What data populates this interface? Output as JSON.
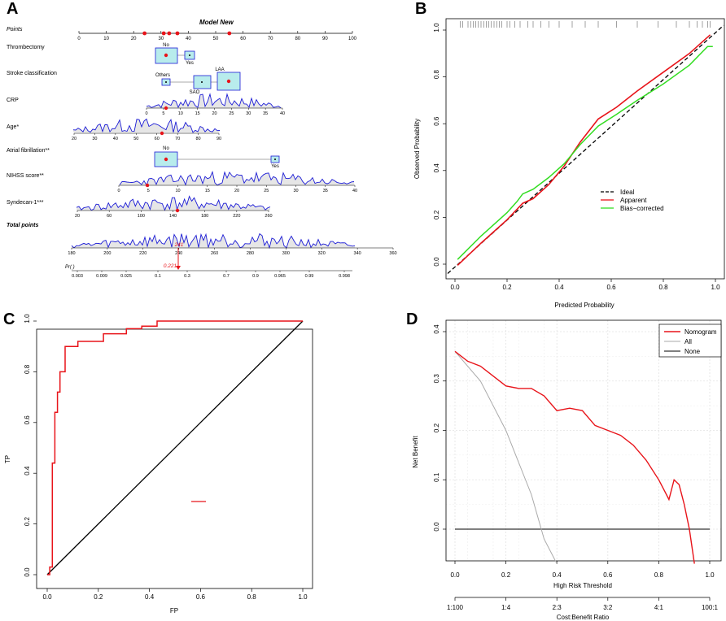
{
  "colors": {
    "red": "#e8141a",
    "green": "#33dd22",
    "blue": "#1c1cd6",
    "box": "#b8ecec",
    "grey": "#999999",
    "black": "#000000"
  },
  "panels": {
    "a": "A",
    "b": "B",
    "c": "C",
    "d": "D"
  },
  "chart_data": [
    {
      "type": "nomogram",
      "panel": "A",
      "title": "Model New",
      "points_label": "Points",
      "points_ticks": [
        0,
        10,
        20,
        30,
        40,
        50,
        60,
        70,
        80,
        90,
        100
      ],
      "rows": [
        {
          "label": "Thrombectomy",
          "levels": [
            "No",
            "Yes"
          ]
        },
        {
          "label": "Stroke classification",
          "levels": [
            "Others",
            "SAO",
            "LAA"
          ]
        },
        {
          "label": "CRP",
          "ticks": [
            0,
            5,
            10,
            15,
            20,
            25,
            30,
            35,
            40
          ]
        },
        {
          "label": "Age*",
          "ticks": [
            20,
            30,
            40,
            50,
            60,
            70,
            80,
            90
          ]
        },
        {
          "label": "Atrial fibrillation**",
          "levels": [
            "No",
            "Yes"
          ]
        },
        {
          "label": "NIHSS score**",
          "ticks": [
            0,
            5,
            10,
            15,
            20,
            25,
            30,
            35,
            40
          ]
        },
        {
          "label": "Syndecan-1***",
          "ticks": [
            20,
            60,
            100,
            140,
            180,
            220,
            260
          ]
        }
      ],
      "total_label": "Total points",
      "total_ticks": [
        180,
        200,
        220,
        240,
        260,
        280,
        300,
        320,
        340,
        360
      ],
      "total_value": "241",
      "prob_label": "Pr( )",
      "prob_ticks": [
        "0.003",
        "0.009",
        "0.025",
        "0.1",
        "0.3",
        "0.7",
        "0.9",
        "0.965",
        "0.99",
        "0.998"
      ],
      "prob_value": "0.221"
    },
    {
      "type": "line",
      "panel": "B",
      "xlabel": "Predicted Probability",
      "ylabel": "Observed  Probability",
      "xlim": [
        0,
        1
      ],
      "ylim": [
        0,
        1
      ],
      "x_ticks": [
        "0.0",
        "0.2",
        "0.4",
        "0.6",
        "0.8",
        "1.0"
      ],
      "y_ticks": [
        "0.0",
        "0.2",
        "0.4",
        "0.6",
        "0.8",
        "1.0"
      ],
      "legend": [
        "Ideal",
        "Apparent",
        "Bias−corrected"
      ],
      "series": [
        {
          "name": "Ideal",
          "x": [
            0,
            1
          ],
          "y": [
            0,
            1
          ]
        },
        {
          "name": "Apparent",
          "x": [
            0.01,
            0.1,
            0.2,
            0.26,
            0.3,
            0.36,
            0.42,
            0.48,
            0.55,
            0.62,
            0.7,
            0.8,
            0.9,
            0.98
          ],
          "y": [
            -0.005,
            0.09,
            0.19,
            0.26,
            0.28,
            0.34,
            0.42,
            0.52,
            0.62,
            0.67,
            0.74,
            0.82,
            0.9,
            0.98
          ]
        },
        {
          "name": "Bias-corrected",
          "x": [
            0.01,
            0.1,
            0.2,
            0.24,
            0.26,
            0.3,
            0.36,
            0.42,
            0.48,
            0.55,
            0.62,
            0.7,
            0.8,
            0.9,
            0.97,
            0.99
          ],
          "y": [
            0.02,
            0.12,
            0.22,
            0.27,
            0.3,
            0.32,
            0.37,
            0.43,
            0.51,
            0.59,
            0.64,
            0.7,
            0.77,
            0.85,
            0.93,
            0.93
          ]
        }
      ],
      "rug": [
        0.02,
        0.03,
        0.05,
        0.06,
        0.07,
        0.08,
        0.09,
        0.1,
        0.11,
        0.12,
        0.13,
        0.14,
        0.15,
        0.16,
        0.17,
        0.18,
        0.2,
        0.21,
        0.23,
        0.25,
        0.28,
        0.3,
        0.33,
        0.36,
        0.4,
        0.45,
        0.5,
        0.55,
        0.62,
        0.7,
        0.78,
        0.85,
        0.9,
        0.93,
        0.95,
        0.97,
        0.98
      ]
    },
    {
      "type": "line",
      "panel": "C",
      "xlabel": "FP",
      "ylabel": "TP",
      "xlim": [
        0,
        1
      ],
      "ylim": [
        0,
        1
      ],
      "x_ticks": [
        "0.0",
        "0.2",
        "0.4",
        "0.6",
        "0.8",
        "1.0"
      ],
      "y_ticks": [
        "0.0",
        "0.2",
        "0.4",
        "0.6",
        "0.8",
        "1.0"
      ],
      "series": [
        {
          "name": "Diagonal",
          "x": [
            0,
            1
          ],
          "y": [
            0,
            1
          ]
        },
        {
          "name": "ROC",
          "x": [
            0,
            0.01,
            0.01,
            0.02,
            0.02,
            0.03,
            0.03,
            0.04,
            0.04,
            0.05,
            0.05,
            0.07,
            0.07,
            0.12,
            0.12,
            0.22,
            0.22,
            0.31,
            0.31,
            0.37,
            0.37,
            0.43,
            0.43,
            1.0
          ],
          "y": [
            0,
            0,
            0.03,
            0.03,
            0.44,
            0.44,
            0.64,
            0.64,
            0.72,
            0.72,
            0.8,
            0.8,
            0.9,
            0.9,
            0.92,
            0.92,
            0.95,
            0.95,
            0.97,
            0.97,
            0.98,
            0.98,
            1.0,
            1.0
          ]
        }
      ]
    },
    {
      "type": "line",
      "panel": "D",
      "xlabel": "High Risk Threshold",
      "ylabel": "Net Benefit",
      "xlabel2": "Cost:Benefit Ratio",
      "xlim": [
        0,
        1
      ],
      "ylim": [
        -0.07,
        0.4
      ],
      "x_ticks": [
        "0.0",
        "0.2",
        "0.4",
        "0.6",
        "0.8",
        "1.0"
      ],
      "y_ticks": [
        "0.0",
        "0.1",
        "0.2",
        "0.3",
        "0.4"
      ],
      "cost_ticks": [
        "1:100",
        "1:4",
        "2:3",
        "3:2",
        "4:1",
        "100:1"
      ],
      "legend": [
        "Nomogram",
        "All",
        "None"
      ],
      "series": [
        {
          "name": "Nomogram",
          "x": [
            0,
            0.05,
            0.1,
            0.15,
            0.2,
            0.25,
            0.3,
            0.35,
            0.4,
            0.45,
            0.5,
            0.55,
            0.6,
            0.65,
            0.7,
            0.75,
            0.8,
            0.82,
            0.84,
            0.86,
            0.88,
            0.9,
            0.92,
            0.94
          ],
          "y": [
            0.36,
            0.34,
            0.33,
            0.31,
            0.29,
            0.285,
            0.285,
            0.27,
            0.24,
            0.245,
            0.24,
            0.21,
            0.2,
            0.19,
            0.17,
            0.14,
            0.1,
            0.08,
            0.06,
            0.1,
            0.09,
            0.05,
            0.0,
            -0.07
          ]
        },
        {
          "name": "All",
          "x": [
            0,
            0.1,
            0.2,
            0.3,
            0.35,
            0.4
          ],
          "y": [
            0.36,
            0.3,
            0.2,
            0.07,
            -0.02,
            -0.07
          ]
        },
        {
          "name": "None",
          "x": [
            0,
            1
          ],
          "y": [
            0,
            0
          ]
        }
      ]
    }
  ]
}
